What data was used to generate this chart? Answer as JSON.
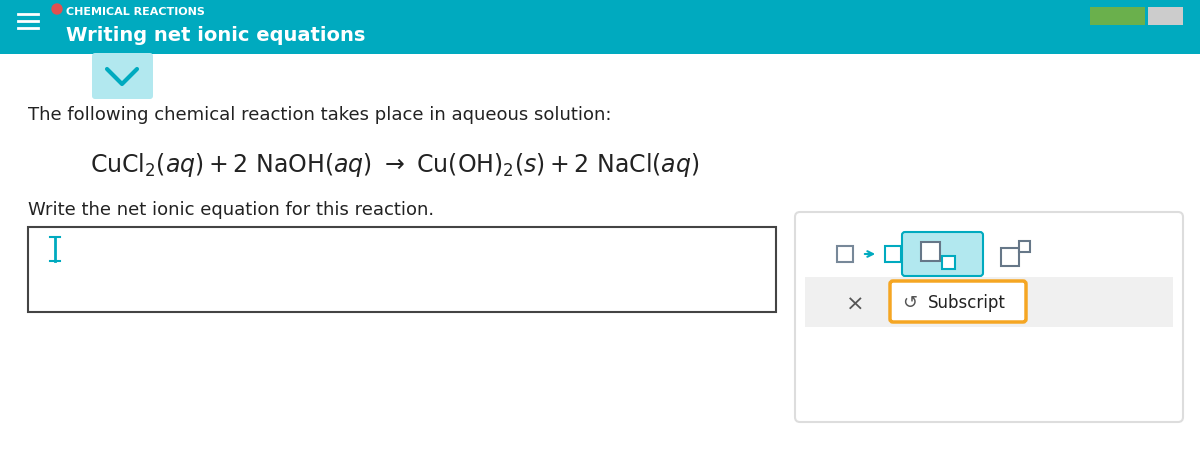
{
  "header_bg": "#00AABF",
  "header_text": "Writing net ionic equations",
  "header_text_color": "#FFFFFF",
  "header_font_size": 14,
  "header_small_text": "CHEMICAL REACTIONS",
  "header_small_color": "#FFFFFF",
  "body_bg": "#FFFFFF",
  "intro_text": "The following chemical reaction takes place in aqueous solution:",
  "intro_font_size": 13,
  "prompt_text": "Write the net ionic equation for this reaction.",
  "prompt_font_size": 13,
  "teal_accent": "#00AABF",
  "teal_light": "#B2E8EF",
  "teal_box_bg": "#E0F5F8",
  "orange_accent": "#F5A623",
  "green_bar": "#6AB04C",
  "gray_bg": "#F0F0F0",
  "dark_text": "#222222"
}
